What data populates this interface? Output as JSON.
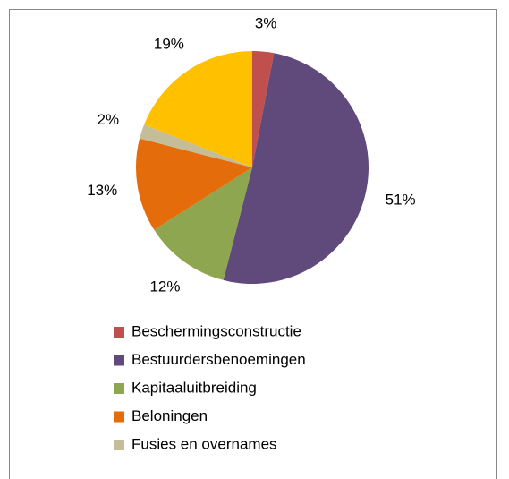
{
  "chart_data": {
    "type": "pie",
    "categories": [
      "Beschermingsconstructie",
      "Bestuurdersbenoemingen",
      "Kapitaaluitbreiding",
      "Beloningen",
      "Fusies en overnames",
      null
    ],
    "values": [
      3,
      51,
      12,
      13,
      2,
      19
    ],
    "value_labels": [
      "3%",
      "51%",
      "12%",
      "13%",
      "2%",
      "19%"
    ],
    "colors": [
      "#c0504d",
      "#604a7b",
      "#8ea64f",
      "#e46c0a",
      "#c4bd97",
      "#ffc000"
    ]
  }
}
